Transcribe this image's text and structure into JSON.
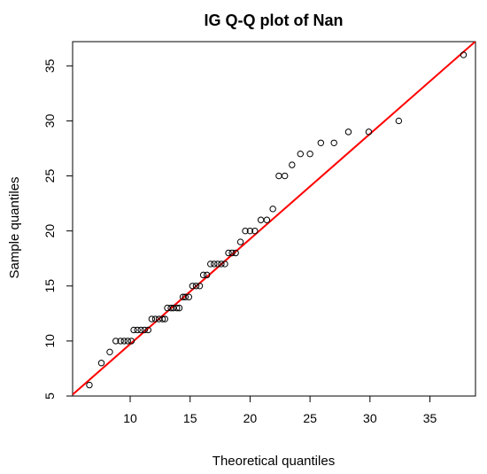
{
  "chart_data": {
    "type": "scatter",
    "title": "IG Q-Q plot of Nan",
    "xlabel": "Theoretical quantiles",
    "ylabel": "Sample quantiles",
    "xlim": [
      5.2,
      38.8
    ],
    "ylim": [
      5.0,
      37.2
    ],
    "xticks": [
      10,
      15,
      20,
      25,
      30,
      35
    ],
    "yticks": [
      5,
      10,
      15,
      20,
      25,
      30,
      35
    ],
    "grid": false,
    "point_color": "#000000",
    "line_color": "#ff0000",
    "reference_line": {
      "intercept": 0.17,
      "slope": 0.955
    },
    "x": [
      6.6,
      7.6,
      8.3,
      8.8,
      9.2,
      9.5,
      9.8,
      10.1,
      10.3,
      10.6,
      10.9,
      11.2,
      11.5,
      11.8,
      12.1,
      12.4,
      12.7,
      12.9,
      13.1,
      13.4,
      13.6,
      13.9,
      14.1,
      14.4,
      14.6,
      14.9,
      15.2,
      15.5,
      15.8,
      16.1,
      16.4,
      16.7,
      17.0,
      17.3,
      17.6,
      17.9,
      18.2,
      18.5,
      18.8,
      19.2,
      19.6,
      20.0,
      20.4,
      20.9,
      21.4,
      21.9,
      22.4,
      22.9,
      23.5,
      24.2,
      25.0,
      25.9,
      27.0,
      28.2,
      29.9,
      32.4,
      37.8
    ],
    "y": [
      6,
      8,
      9,
      10,
      10,
      10,
      10,
      10,
      11,
      11,
      11,
      11,
      11,
      12,
      12,
      12,
      12,
      12,
      13,
      13,
      13,
      13,
      13,
      14,
      14,
      14,
      15,
      15,
      15,
      16,
      16,
      17,
      17,
      17,
      17,
      17,
      18,
      18,
      18,
      19,
      20,
      20,
      20,
      21,
      21,
      22,
      25,
      25,
      26,
      27,
      27,
      28,
      28,
      29,
      29,
      30,
      36
    ]
  }
}
